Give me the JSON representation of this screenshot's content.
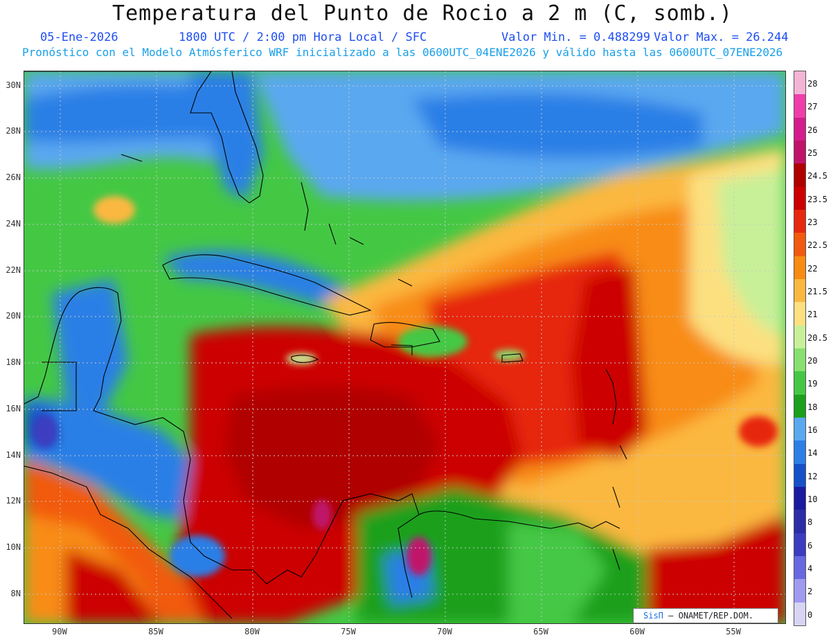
{
  "header": {
    "title": "Temperatura del Punto de Rocio a 2 m (C, somb.)",
    "date": "05-Ene-2026",
    "time_info": "1800 UTC / 2:00 pm Hora Local / SFC",
    "min_value": "Valor Min. = 0.488299",
    "max_value": "Valor Max. = 26.244",
    "model_info": "Pronóstico con el Modelo Atmósferico WRF inicializado a las 0600UTC_04ENE2026 y válido hasta las  0600UTC_07ENE2026"
  },
  "axes": {
    "lat_labels": [
      "30N",
      "28N",
      "26N",
      "24N",
      "22N",
      "20N",
      "18N",
      "16N",
      "14N",
      "12N",
      "10N",
      "8N"
    ],
    "lon_labels": [
      "90W",
      "85W",
      "80W",
      "75W",
      "70W",
      "65W",
      "60W",
      "55W"
    ]
  },
  "colorbar": {
    "labels": [
      "28",
      "27",
      "26",
      "25",
      "24.5",
      "23.5",
      "23",
      "22.5",
      "22",
      "21.5",
      "21",
      "20.5",
      "20",
      "19",
      "18",
      "16",
      "14",
      "12",
      "10",
      "8",
      "6",
      "4",
      "2",
      "0"
    ],
    "colors": [
      "#f4b4d6",
      "#ef3ea8",
      "#d41c8c",
      "#c0146a",
      "#b00000",
      "#cc0000",
      "#e62810",
      "#f25a10",
      "#f88c12",
      "#fbb840",
      "#fce080",
      "#c8f098",
      "#88e070",
      "#44c844",
      "#1aa01a",
      "#5aa8f0",
      "#2c7fe6",
      "#1650c8",
      "#1a1aa0",
      "#2c2ca8",
      "#3c3cc0",
      "#6868e0",
      "#a09af0",
      "#d8d4f4"
    ]
  },
  "credit": {
    "logo": "SisΠ",
    "text": "– ONAMET/REP.DOM."
  },
  "map_info": {
    "region": "Caribbean",
    "lat_range": "7N – 31N",
    "lon_range": "92W – 52W",
    "field_colors": {
      "land_central_america": "#2c7fe6",
      "north_atlantic": "#5aa8f0",
      "caribbean_core": "#cc0000",
      "atlantic_band": "#f88c12"
    }
  }
}
